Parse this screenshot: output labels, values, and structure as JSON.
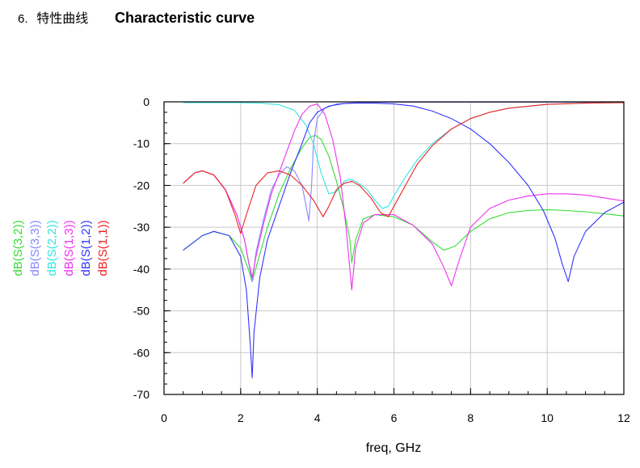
{
  "header": {
    "section_number": "6.",
    "title_cn": "特性曲线",
    "title_en": "Characteristic curve"
  },
  "chart_data": {
    "type": "line",
    "title": "",
    "xlabel": "freq, GHz",
    "ylabel": "",
    "xlim": [
      0,
      12
    ],
    "ylim": [
      -70,
      0
    ],
    "xticks": [
      0,
      2,
      4,
      6,
      8,
      10,
      12
    ],
    "yticks": [
      0,
      -10,
      -20,
      -30,
      -40,
      -50,
      -60,
      -70
    ],
    "grid": true,
    "legend_position": "left-vertical",
    "series": [
      {
        "name": "dB(S(3,2))",
        "color": "#33dd33",
        "points": [
          [
            0.5,
            -35.5
          ],
          [
            1.0,
            -32
          ],
          [
            1.3,
            -31
          ],
          [
            1.7,
            -32
          ],
          [
            2.0,
            -35
          ],
          [
            2.2,
            -40
          ],
          [
            2.3,
            -43
          ],
          [
            2.45,
            -38
          ],
          [
            2.7,
            -30
          ],
          [
            3.0,
            -22
          ],
          [
            3.3,
            -16
          ],
          [
            3.6,
            -11
          ],
          [
            3.8,
            -8.5
          ],
          [
            3.95,
            -8
          ],
          [
            4.1,
            -9
          ],
          [
            4.3,
            -13
          ],
          [
            4.5,
            -19
          ],
          [
            4.7,
            -26
          ],
          [
            4.85,
            -33
          ],
          [
            4.9,
            -38.5
          ],
          [
            5.0,
            -33
          ],
          [
            5.2,
            -28
          ],
          [
            5.5,
            -27
          ],
          [
            6.0,
            -27.5
          ],
          [
            6.5,
            -29.5
          ],
          [
            7.0,
            -33.5
          ],
          [
            7.3,
            -35.5
          ],
          [
            7.6,
            -34.5
          ],
          [
            8.0,
            -31
          ],
          [
            8.5,
            -28
          ],
          [
            9.0,
            -26.5
          ],
          [
            9.5,
            -26
          ],
          [
            10.0,
            -25.8
          ],
          [
            10.5,
            -26
          ],
          [
            11.0,
            -26.3
          ],
          [
            11.5,
            -26.8
          ],
          [
            12.0,
            -27.3
          ]
        ]
      },
      {
        "name": "dB(S(3,3))",
        "color": "#8888ff",
        "points": [
          [
            0.5,
            -19.5
          ],
          [
            0.8,
            -17
          ],
          [
            1.0,
            -16.5
          ],
          [
            1.3,
            -17.5
          ],
          [
            1.6,
            -21
          ],
          [
            1.9,
            -27
          ],
          [
            2.1,
            -33
          ],
          [
            2.2,
            -38
          ],
          [
            2.3,
            -43
          ],
          [
            2.4,
            -36
          ],
          [
            2.6,
            -28
          ],
          [
            2.8,
            -21
          ],
          [
            3.0,
            -17.5
          ],
          [
            3.2,
            -15.5
          ],
          [
            3.4,
            -16.5
          ],
          [
            3.6,
            -20
          ],
          [
            3.7,
            -24.5
          ],
          [
            3.78,
            -28.5
          ],
          [
            3.85,
            -20
          ],
          [
            3.9,
            -10
          ],
          [
            4.0,
            -4
          ],
          [
            4.2,
            -1.5
          ],
          [
            4.5,
            -0.5
          ],
          [
            5.0,
            -0.2
          ],
          [
            6.0,
            -0.1
          ],
          [
            8.0,
            -0.1
          ],
          [
            10.0,
            -0.1
          ],
          [
            12.0,
            -0.1
          ]
        ]
      },
      {
        "name": "dB(S(2,2))",
        "color": "#33e5e5",
        "points": [
          [
            0.5,
            -0.2
          ],
          [
            1.0,
            -0.2
          ],
          [
            2.0,
            -0.2
          ],
          [
            2.5,
            -0.3
          ],
          [
            3.0,
            -0.7
          ],
          [
            3.4,
            -2
          ],
          [
            3.7,
            -5.5
          ],
          [
            3.9,
            -10
          ],
          [
            4.1,
            -17
          ],
          [
            4.3,
            -22
          ],
          [
            4.5,
            -21.5
          ],
          [
            4.7,
            -19
          ],
          [
            4.85,
            -18.5
          ],
          [
            5.0,
            -19
          ],
          [
            5.3,
            -21
          ],
          [
            5.5,
            -23.5
          ],
          [
            5.7,
            -25.5
          ],
          [
            5.85,
            -25
          ],
          [
            6.0,
            -22.5
          ],
          [
            6.3,
            -18
          ],
          [
            6.6,
            -14
          ],
          [
            7.0,
            -10
          ],
          [
            7.5,
            -6.5
          ],
          [
            8.0,
            -4
          ],
          [
            8.5,
            -2.5
          ],
          [
            9.0,
            -1.5
          ],
          [
            10.0,
            -0.6
          ],
          [
            11.0,
            -0.3
          ],
          [
            12.0,
            -0.2
          ]
        ]
      },
      {
        "name": "dB(S(1,3))",
        "color": "#ee33ee",
        "points": [
          [
            0.5,
            -19.5
          ],
          [
            0.8,
            -17
          ],
          [
            1.0,
            -16.5
          ],
          [
            1.3,
            -17.5
          ],
          [
            1.6,
            -21
          ],
          [
            1.9,
            -27
          ],
          [
            2.1,
            -33
          ],
          [
            2.2,
            -38
          ],
          [
            2.3,
            -42
          ],
          [
            2.4,
            -37
          ],
          [
            2.6,
            -29
          ],
          [
            2.8,
            -22
          ],
          [
            3.0,
            -17
          ],
          [
            3.2,
            -12
          ],
          [
            3.4,
            -7
          ],
          [
            3.6,
            -3
          ],
          [
            3.8,
            -1
          ],
          [
            4.0,
            -0.5
          ],
          [
            4.2,
            -3
          ],
          [
            4.4,
            -9
          ],
          [
            4.6,
            -18
          ],
          [
            4.75,
            -30
          ],
          [
            4.9,
            -45
          ],
          [
            5.0,
            -35
          ],
          [
            5.2,
            -29
          ],
          [
            5.5,
            -27
          ],
          [
            6.0,
            -27
          ],
          [
            6.5,
            -29.5
          ],
          [
            7.0,
            -34
          ],
          [
            7.3,
            -39.5
          ],
          [
            7.5,
            -44
          ],
          [
            7.7,
            -38
          ],
          [
            8.0,
            -30
          ],
          [
            8.5,
            -25.5
          ],
          [
            9.0,
            -23.5
          ],
          [
            9.5,
            -22.5
          ],
          [
            10.0,
            -22
          ],
          [
            10.5,
            -22
          ],
          [
            11.0,
            -22.3
          ],
          [
            11.5,
            -23
          ],
          [
            12.0,
            -23.7
          ]
        ]
      },
      {
        "name": "dB(S(1,2))",
        "color": "#3333ff",
        "points": [
          [
            0.5,
            -35.5
          ],
          [
            1.0,
            -32
          ],
          [
            1.3,
            -31
          ],
          [
            1.7,
            -32
          ],
          [
            2.0,
            -37
          ],
          [
            2.15,
            -45
          ],
          [
            2.25,
            -58
          ],
          [
            2.3,
            -66
          ],
          [
            2.35,
            -55
          ],
          [
            2.5,
            -42
          ],
          [
            2.7,
            -33
          ],
          [
            3.0,
            -25
          ],
          [
            3.3,
            -17
          ],
          [
            3.6,
            -10
          ],
          [
            3.8,
            -5
          ],
          [
            4.0,
            -2.5
          ],
          [
            4.3,
            -1
          ],
          [
            4.7,
            -0.4
          ],
          [
            5.0,
            -0.3
          ],
          [
            5.5,
            -0.3
          ],
          [
            6.0,
            -0.5
          ],
          [
            6.5,
            -1
          ],
          [
            7.0,
            -2.2
          ],
          [
            7.5,
            -4
          ],
          [
            8.0,
            -6.5
          ],
          [
            8.5,
            -10
          ],
          [
            9.0,
            -14.5
          ],
          [
            9.5,
            -20
          ],
          [
            9.9,
            -26
          ],
          [
            10.2,
            -32.5
          ],
          [
            10.4,
            -39
          ],
          [
            10.55,
            -43
          ],
          [
            10.7,
            -37
          ],
          [
            11.0,
            -31
          ],
          [
            11.5,
            -26.5
          ],
          [
            12.0,
            -24
          ]
        ]
      },
      {
        "name": "dB(S(1,1))",
        "color": "#ee2222",
        "points": [
          [
            0.5,
            -0.2
          ],
          [
            1.0,
            -0.2
          ],
          [
            2.0,
            -0.2
          ],
          [
            2.5,
            -0.2
          ],
          [
            3.0,
            -0.3
          ],
          [
            3.5,
            -0.3
          ],
          [
            4.0,
            -0.2
          ],
          [
            5.0,
            -0.1
          ],
          [
            6.0,
            -0.1
          ],
          [
            8.0,
            -0.1
          ],
          [
            10.0,
            -0.1
          ],
          [
            12.0,
            -0.1
          ],
          [
            11.0,
            -23.5
          ],
          [
            11.5,
            -23.2
          ],
          [
            12.0,
            -23.5
          ]
        ]
      }
    ]
  }
}
